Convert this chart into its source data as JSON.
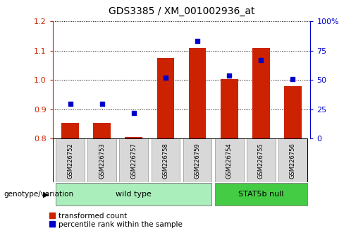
{
  "title": "GDS3385 / XM_001002936_at",
  "samples": [
    "GSM226752",
    "GSM226753",
    "GSM226757",
    "GSM226758",
    "GSM226759",
    "GSM226754",
    "GSM226755",
    "GSM226756"
  ],
  "red_bars": [
    0.855,
    0.855,
    0.805,
    1.075,
    1.108,
    1.002,
    1.108,
    0.98
  ],
  "blue_dots_pct": [
    30,
    30,
    22,
    52,
    83,
    54,
    67,
    51
  ],
  "ylim": [
    0.8,
    1.2
  ],
  "y2lim": [
    0,
    100
  ],
  "yticks": [
    0.8,
    0.9,
    1.0,
    1.1,
    1.2
  ],
  "y2ticks": [
    0,
    25,
    50,
    75,
    100
  ],
  "y2ticklabels": [
    "0",
    "25",
    "50",
    "75",
    "100%"
  ],
  "bar_color": "#cc2200",
  "dot_color": "#0000cc",
  "bar_bottom": 0.8,
  "wt_count": 5,
  "wt_color": "#aaeebb",
  "stat5b_color": "#44cc44",
  "genotype_label": "genotype/variation",
  "wt_label": "wild type",
  "stat5b_label": "STAT5b null",
  "legend_red": "transformed count",
  "legend_blue": "percentile rank within the sample",
  "left_axis_color": "#cc2200",
  "right_axis_color": "#0000cc",
  "bar_width": 0.55,
  "tick_fontsize": 8,
  "sample_fontsize": 6,
  "title_fontsize": 10
}
